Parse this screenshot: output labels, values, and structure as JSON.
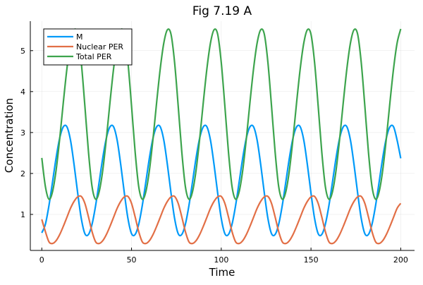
{
  "chart_data": {
    "type": "line",
    "title": "Fig 7.19 A",
    "xlabel": "Time",
    "ylabel": "Concentration",
    "xlim": [
      -6.4,
      207.7
    ],
    "ylim": [
      0.12,
      5.72
    ],
    "xticks": [
      0,
      50,
      100,
      150,
      200
    ],
    "yticks": [
      1,
      2,
      3,
      4,
      5
    ],
    "grid": true,
    "legend_position": "top-left",
    "t_start": 0,
    "t_step": 2,
    "series": [
      {
        "name": "M",
        "color": "#009af9",
        "values": [
          0.55,
          0.76,
          1.22,
          1.8,
          2.39,
          2.87,
          3.14,
          3.14,
          2.81,
          2.21,
          1.52,
          0.9,
          0.53,
          0.51,
          0.76,
          1.22,
          1.8,
          2.39,
          2.87,
          3.14,
          3.14,
          2.81,
          2.21,
          1.52,
          0.9,
          0.53,
          0.51,
          0.76,
          1.22,
          1.8,
          2.39,
          2.87,
          3.14,
          3.14,
          2.81,
          2.21,
          1.52,
          0.9,
          0.53,
          0.51,
          0.76,
          1.22,
          1.8,
          2.39,
          2.87,
          3.14,
          3.14,
          2.81,
          2.21,
          1.52,
          0.9,
          0.53,
          0.51,
          0.76,
          1.22,
          1.8,
          2.39,
          2.87,
          3.14,
          3.14,
          2.81,
          2.21,
          1.52,
          0.9,
          0.53,
          0.51,
          0.76,
          1.22,
          1.8,
          2.39,
          2.87,
          3.14,
          3.14,
          2.81,
          2.21,
          1.52,
          0.9,
          0.53,
          0.51,
          0.76,
          1.22,
          1.8,
          2.39,
          2.87,
          3.14,
          3.14,
          2.81,
          2.21,
          1.52,
          0.9,
          0.53,
          0.51,
          0.76,
          1.22,
          1.8,
          2.39,
          2.87,
          3.14,
          3.14,
          2.81,
          2.37
        ]
      },
      {
        "name": "Nuclear PER",
        "color": "#e26f46",
        "values": [
          0.88,
          0.58,
          0.33,
          0.29,
          0.36,
          0.51,
          0.71,
          0.93,
          1.15,
          1.32,
          1.43,
          1.44,
          1.27,
          0.94,
          0.58,
          0.33,
          0.29,
          0.36,
          0.51,
          0.71,
          0.93,
          1.15,
          1.32,
          1.43,
          1.44,
          1.27,
          0.94,
          0.58,
          0.33,
          0.29,
          0.36,
          0.51,
          0.71,
          0.93,
          1.15,
          1.32,
          1.43,
          1.44,
          1.27,
          0.94,
          0.58,
          0.33,
          0.29,
          0.36,
          0.51,
          0.71,
          0.93,
          1.15,
          1.32,
          1.43,
          1.44,
          1.27,
          0.94,
          0.58,
          0.33,
          0.29,
          0.36,
          0.51,
          0.71,
          0.93,
          1.15,
          1.32,
          1.43,
          1.44,
          1.27,
          0.94,
          0.58,
          0.33,
          0.29,
          0.36,
          0.51,
          0.71,
          0.93,
          1.15,
          1.32,
          1.43,
          1.44,
          1.27,
          0.94,
          0.58,
          0.33,
          0.29,
          0.36,
          0.51,
          0.71,
          0.93,
          1.15,
          1.32,
          1.43,
          1.44,
          1.27,
          0.94,
          0.58,
          0.33,
          0.29,
          0.36,
          0.51,
          0.71,
          0.93,
          1.15,
          1.27
        ]
      },
      {
        "name": "Total PER",
        "color": "#3da44d",
        "values": [
          2.38,
          1.68,
          1.37,
          1.56,
          2.09,
          2.86,
          3.74,
          4.56,
          5.19,
          5.51,
          5.4,
          4.71,
          3.65,
          2.53,
          1.68,
          1.37,
          1.56,
          2.09,
          2.86,
          3.74,
          4.56,
          5.19,
          5.51,
          5.4,
          4.71,
          3.65,
          2.53,
          1.68,
          1.37,
          1.56,
          2.09,
          2.86,
          3.74,
          4.56,
          5.19,
          5.51,
          5.4,
          4.71,
          3.65,
          2.53,
          1.68,
          1.37,
          1.56,
          2.09,
          2.86,
          3.74,
          4.56,
          5.19,
          5.51,
          5.4,
          4.71,
          3.65,
          2.53,
          1.68,
          1.37,
          1.56,
          2.09,
          2.86,
          3.74,
          4.56,
          5.19,
          5.51,
          5.4,
          4.71,
          3.65,
          2.53,
          1.68,
          1.37,
          1.56,
          2.09,
          2.86,
          3.74,
          4.56,
          5.19,
          5.51,
          5.4,
          4.71,
          3.65,
          2.53,
          1.68,
          1.37,
          1.56,
          2.09,
          2.86,
          3.74,
          4.56,
          5.19,
          5.51,
          5.4,
          4.71,
          3.65,
          2.53,
          1.68,
          1.37,
          1.56,
          2.09,
          2.86,
          3.74,
          4.56,
          5.19,
          5.53
        ]
      }
    ]
  }
}
